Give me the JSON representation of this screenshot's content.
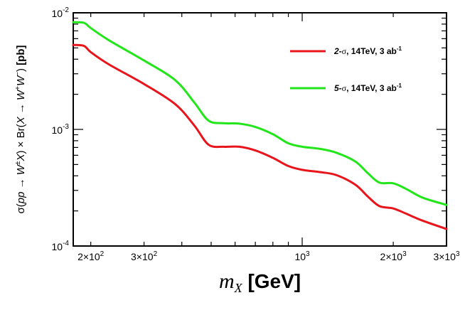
{
  "chart_data": {
    "type": "line",
    "xscale": "log",
    "yscale": "log",
    "xlim": [
      175,
      3000
    ],
    "ylim": [
      0.0001,
      0.01
    ],
    "xlabel": "m_X [GeV]",
    "ylabel": "σ(pp → W±X) × Br(X → W+W−) [pb]",
    "x_ticks": [
      {
        "value": 200,
        "label": "2×10",
        "exp": "2"
      },
      {
        "value": 300,
        "label": "3×10",
        "exp": "2"
      },
      {
        "value": 1000,
        "label": "10",
        "exp": "3"
      },
      {
        "value": 2000,
        "label": "2×10",
        "exp": "3"
      },
      {
        "value": 3000,
        "label": "3×10",
        "exp": "3"
      }
    ],
    "y_ticks": [
      {
        "value": 0.0001,
        "label": "10",
        "exp": "-4"
      },
      {
        "value": 0.001,
        "label": "10",
        "exp": "-3"
      },
      {
        "value": 0.01,
        "label": "10",
        "exp": "-2"
      }
    ],
    "series": [
      {
        "name": "2-σ, 14TeV, 3 ab",
        "name_prefix": "2-",
        "name_sigma": "σ",
        "name_rest": ", 14TeV, 3 ab",
        "name_sup": "-1",
        "color": "#e8161c",
        "x": [
          175,
          190,
          200,
          230,
          300,
          380,
          440,
          490,
          550,
          620,
          700,
          800,
          900,
          1000,
          1150,
          1300,
          1500,
          1650,
          1800,
          2000,
          2200,
          2500,
          3000
        ],
        "y": [
          0.0053,
          0.0052,
          0.0046,
          0.0036,
          0.00245,
          0.00165,
          0.00108,
          0.00074,
          0.00071,
          0.00071,
          0.00066,
          0.00057,
          0.000485,
          0.00045,
          0.00043,
          0.000405,
          0.000335,
          0.000265,
          0.00022,
          0.00021,
          0.00019,
          0.000165,
          0.00014
        ]
      },
      {
        "name": "5-σ, 14TeV, 3 ab",
        "name_prefix": "5-",
        "name_sigma": "σ",
        "name_rest": ", 14TeV, 3 ab",
        "name_sup": "-1",
        "color": "#22e61a",
        "x": [
          175,
          190,
          200,
          230,
          300,
          380,
          440,
          490,
          550,
          620,
          700,
          800,
          900,
          1000,
          1150,
          1300,
          1500,
          1650,
          1800,
          2000,
          2200,
          2500,
          3000
        ],
        "y": [
          0.0083,
          0.0082,
          0.0074,
          0.0058,
          0.0039,
          0.00265,
          0.0017,
          0.00119,
          0.00113,
          0.00112,
          0.00105,
          0.00091,
          0.00076,
          0.00071,
          0.00068,
          0.00063,
          0.00053,
          0.00042,
          0.00035,
          0.000345,
          0.00031,
          0.00026,
          0.000225
        ]
      }
    ],
    "legend_position": "top-right"
  }
}
